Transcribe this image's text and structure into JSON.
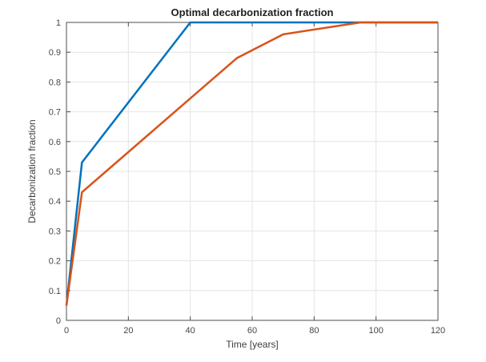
{
  "figure": {
    "background": "#ffffff"
  },
  "chart_data": {
    "type": "line",
    "title": "Optimal decarbonization fraction",
    "xlabel": "Time [years]",
    "ylabel": "Decarbonization fraction",
    "xlim": [
      0,
      120
    ],
    "ylim": [
      0,
      1
    ],
    "xticks": [
      0,
      20,
      40,
      60,
      80,
      100,
      120
    ],
    "xtick_labels": [
      "0",
      "20",
      "40",
      "60",
      "80",
      "100",
      "120"
    ],
    "yticks": [
      0,
      0.1,
      0.2,
      0.3,
      0.4,
      0.5,
      0.6,
      0.7,
      0.8,
      0.9,
      1
    ],
    "ytick_labels": [
      "0",
      "0.1",
      "0.2",
      "0.3",
      "0.4",
      "0.5",
      "0.6",
      "0.7",
      "0.8",
      "0.9",
      "1"
    ],
    "grid": true,
    "legend": null,
    "colors": {
      "grid_line": "#e4e4e4",
      "axis_box": "#4d4d4d",
      "tick_mark": "#4d4d4d",
      "tick_text": "#474747",
      "title_text": "#1f1f1f"
    },
    "series": [
      {
        "name": "blue",
        "color": "#0072BD",
        "x": [
          0,
          5,
          40,
          120
        ],
        "y": [
          0.05,
          0.53,
          1,
          1
        ]
      },
      {
        "name": "orange",
        "color": "#D95319",
        "x": [
          0,
          5,
          55,
          70,
          95,
          120
        ],
        "y": [
          0.05,
          0.43,
          0.88,
          0.96,
          1,
          1
        ]
      }
    ]
  }
}
